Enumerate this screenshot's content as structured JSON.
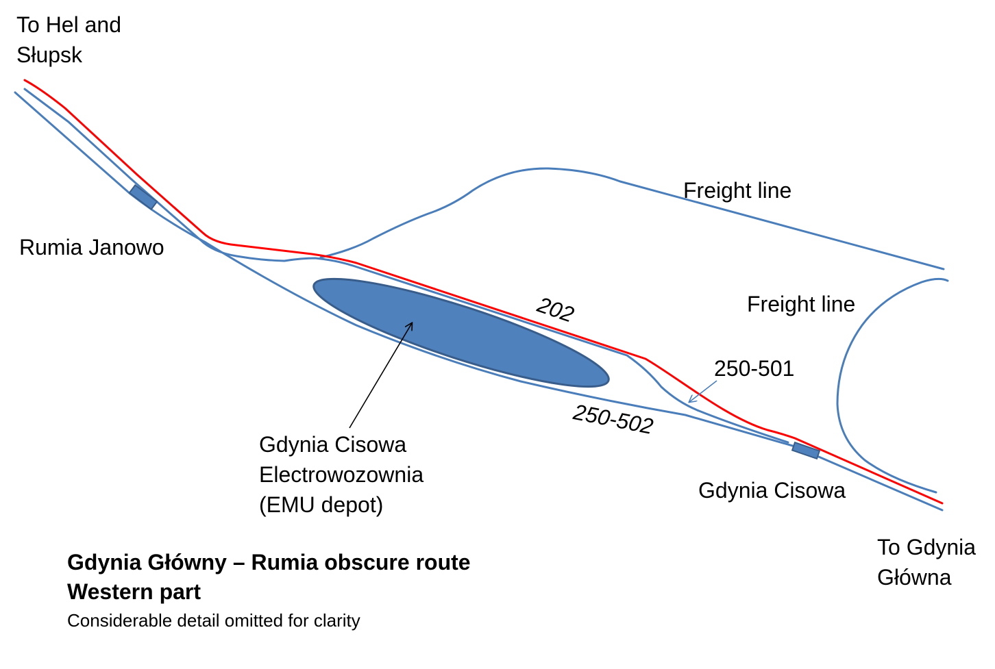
{
  "directions": {
    "west": {
      "line1": "To Hel and",
      "line2": "Słupsk"
    },
    "east": {
      "line1": "To Gdynia",
      "line2": "Główna"
    }
  },
  "stations": {
    "rumia_janowo": "Rumia Janowo",
    "gdynia_cisowa": "Gdynia Cisowa"
  },
  "depot": {
    "line1": "Gdynia Cisowa",
    "line2": "Electrowozownia",
    "line3": "(EMU depot)"
  },
  "freight_labels": [
    "Freight line",
    "Freight line"
  ],
  "line_numbers": {
    "main": "202",
    "connector": "250-501",
    "lower": "250-502"
  },
  "caption": {
    "title": "Gdynia Główny – Rumia obscure route",
    "subtitle": "Western part",
    "note": "Considerable detail omitted for clarity"
  },
  "colors": {
    "main_line": "#ff0000",
    "track": "#4a7ebb",
    "depot": "#4f81bd",
    "depot_outline": "#385d8a",
    "text": "#000000"
  }
}
